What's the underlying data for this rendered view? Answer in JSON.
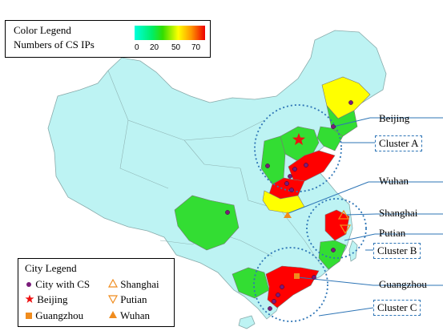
{
  "colors": {
    "base": "#bdf3f3",
    "green": "#33dd33",
    "yellow": "#ffff00",
    "red": "#ff0000",
    "dot": "#7a1c7a",
    "cluster_ring": "#2e75b6"
  },
  "color_legend": {
    "title": "Color Legend",
    "subtitle": "Numbers of CS IPs",
    "ticks": [
      "0",
      "20",
      "50",
      "70"
    ]
  },
  "city_legend": {
    "title": "City Legend",
    "items": [
      {
        "label": "City with CS",
        "icon": "purple-dot-icon"
      },
      {
        "label": "Shanghai",
        "icon": "up-triangle-outline-icon"
      },
      {
        "label": "Beijing",
        "icon": "red-star-icon"
      },
      {
        "label": "Putian",
        "icon": "down-triangle-outline-icon"
      },
      {
        "label": "Guangzhou",
        "icon": "orange-square-icon"
      },
      {
        "label": "Wuhan",
        "icon": "orange-triangle-icon"
      }
    ]
  },
  "labels": {
    "beijing": "Beijing",
    "wuhan": "Wuhan",
    "shanghai": "Shanghai",
    "putian": "Putian",
    "guangzhou": "Guangzhou"
  },
  "clusters": {
    "a": "Cluster A",
    "b": "Cluster B",
    "c": "Cluster C"
  }
}
